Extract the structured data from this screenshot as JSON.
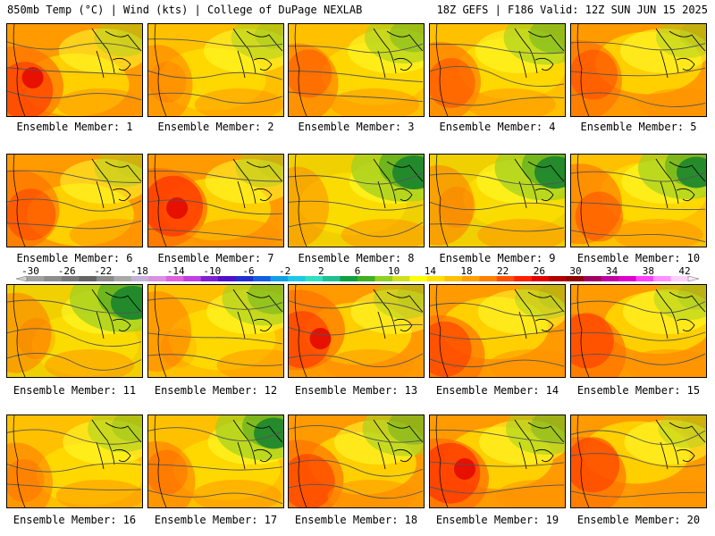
{
  "header": {
    "left": "850mb Temp (°C) | Wind (kts) | College of DuPage NEXLAB",
    "right": "18Z GEFS | F186 Valid: 12Z SUN JUN 15 2025"
  },
  "members": [
    {
      "label": "Ensemble Member: 1",
      "palette": "warm",
      "green": 0.05,
      "red": 0.6
    },
    {
      "label": "Ensemble Member: 2",
      "palette": "mild",
      "green": 0.15,
      "red": 0.15
    },
    {
      "label": "Ensemble Member: 3",
      "palette": "mild",
      "green": 0.3,
      "red": 0.35
    },
    {
      "label": "Ensemble Member: 4",
      "palette": "mild",
      "green": 0.35,
      "red": 0.4
    },
    {
      "label": "Ensemble Member: 5",
      "palette": "warm",
      "green": 0.1,
      "red": 0.4
    },
    {
      "label": "Ensemble Member: 6",
      "palette": "warm",
      "green": 0.05,
      "red": 0.45
    },
    {
      "label": "Ensemble Member: 7",
      "palette": "warm",
      "green": 0.05,
      "red": 0.7
    },
    {
      "label": "Ensemble Member: 8",
      "palette": "cool",
      "green": 0.6,
      "red": 0.0
    },
    {
      "label": "Ensemble Member: 9",
      "palette": "cool",
      "green": 0.55,
      "red": 0.15
    },
    {
      "label": "Ensemble Member: 10",
      "palette": "mild",
      "green": 0.5,
      "red": 0.4
    },
    {
      "label": "Ensemble Member: 11",
      "palette": "cool",
      "green": 0.6,
      "red": 0.15
    },
    {
      "label": "Ensemble Member: 12",
      "palette": "mild",
      "green": 0.35,
      "red": 0.1
    },
    {
      "label": "Ensemble Member: 13",
      "palette": "warm",
      "green": 0.1,
      "red": 0.6
    },
    {
      "label": "Ensemble Member: 14",
      "palette": "warm",
      "green": 0.1,
      "red": 0.55
    },
    {
      "label": "Ensemble Member: 15",
      "palette": "warm",
      "green": 0.15,
      "red": 0.55
    },
    {
      "label": "Ensemble Member: 16",
      "palette": "mild",
      "green": 0.2,
      "red": 0.2
    },
    {
      "label": "Ensemble Member: 17",
      "palette": "mild",
      "green": 0.5,
      "red": 0.25
    },
    {
      "label": "Ensemble Member: 18",
      "palette": "warm",
      "green": 0.35,
      "red": 0.55
    },
    {
      "label": "Ensemble Member: 19",
      "palette": "warm",
      "green": 0.3,
      "red": 0.7
    },
    {
      "label": "Ensemble Member: 20",
      "palette": "warm",
      "green": 0.05,
      "red": 0.55
    }
  ],
  "colorbar": {
    "ticks": [
      "-30",
      "-26",
      "-22",
      "-18",
      "-14",
      "-10",
      "-6",
      "-2",
      "2",
      "6",
      "10",
      "14",
      "18",
      "22",
      "26",
      "30",
      "34",
      "38",
      "42"
    ],
    "colors": [
      "#a0a0a0",
      "#8c8c8c",
      "#787878",
      "#646464",
      "#8a8a8a",
      "#a8a8a8",
      "#c4b0d8",
      "#d890e0",
      "#e060e0",
      "#c040e0",
      "#8020d0",
      "#5010c8",
      "#2030d0",
      "#1060e0",
      "#10a0e8",
      "#20c8e8",
      "#30e0c0",
      "#20c090",
      "#10a040",
      "#40b020",
      "#90d020",
      "#d0e020",
      "#ffff00",
      "#ffe000",
      "#ffc000",
      "#ffa000",
      "#ff8000",
      "#ff5000",
      "#ff2000",
      "#e00000",
      "#b00000",
      "#900000",
      "#a00060",
      "#c000a0",
      "#e000d0",
      "#ff40ff",
      "#ff90ff",
      "#ffd0ff"
    ]
  }
}
